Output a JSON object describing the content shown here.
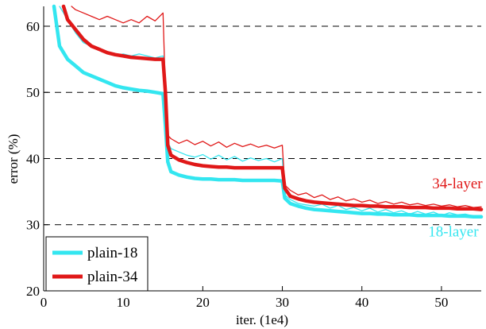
{
  "chart_data": {
    "type": "line",
    "xlabel": "iter. (1e4)",
    "ylabel": "error (%)",
    "xlim": [
      0,
      55
    ],
    "ylim": [
      20,
      63
    ],
    "xticks": [
      0,
      10,
      20,
      30,
      40,
      50
    ],
    "yticks": [
      20,
      30,
      40,
      50,
      60
    ],
    "grid": "horizontal-dashed",
    "legend": "bottom-left",
    "colors": {
      "plain18": "#33e6f0",
      "plain34": "#e01818"
    },
    "series": [
      {
        "name": "plain-18",
        "style": "thick",
        "x": [
          1.3,
          2,
          3,
          4,
          5,
          6,
          7,
          8,
          9,
          10,
          11,
          12,
          13,
          14,
          15,
          15.3,
          15.6,
          16,
          17,
          18,
          19,
          20,
          21,
          22,
          23,
          24,
          25,
          26,
          27,
          28,
          29,
          30,
          30.3,
          31,
          32,
          33,
          34,
          35,
          36,
          37,
          38,
          39,
          40,
          41,
          42,
          43,
          44,
          45,
          46,
          47,
          48,
          49,
          50,
          51,
          52,
          53,
          54,
          55
        ],
        "y": [
          63,
          57,
          55,
          54,
          53,
          52.5,
          52,
          51.5,
          51,
          50.7,
          50.5,
          50.3,
          50.2,
          50,
          49.8,
          45,
          39.5,
          38,
          37.5,
          37.2,
          37,
          36.9,
          36.9,
          36.8,
          36.8,
          36.8,
          36.7,
          36.7,
          36.7,
          36.7,
          36.7,
          36.6,
          34,
          33.2,
          32.8,
          32.5,
          32.3,
          32.2,
          32.1,
          32,
          31.9,
          31.8,
          31.7,
          31.7,
          31.6,
          31.6,
          31.5,
          31.5,
          31.5,
          31.4,
          31.4,
          31.4,
          31.4,
          31.3,
          31.3,
          31.3,
          31.2,
          31.2
        ]
      },
      {
        "name": "plain-34",
        "style": "thick",
        "x": [
          2.5,
          3,
          4,
          5,
          6,
          7,
          8,
          9,
          10,
          11,
          12,
          13,
          14,
          15,
          15.3,
          15.6,
          16,
          17,
          18,
          19,
          20,
          21,
          22,
          23,
          24,
          25,
          26,
          27,
          28,
          29,
          30,
          30.3,
          31,
          32,
          33,
          34,
          35,
          36,
          37,
          38,
          39,
          40,
          41,
          42,
          43,
          44,
          45,
          46,
          47,
          48,
          49,
          50,
          51,
          52,
          53,
          54,
          55
        ],
        "y": [
          63,
          61,
          59.5,
          58,
          57,
          56.5,
          56,
          55.7,
          55.5,
          55.3,
          55.2,
          55.1,
          55,
          55,
          50,
          42,
          40.5,
          39.8,
          39.4,
          39.1,
          38.9,
          38.8,
          38.7,
          38.7,
          38.6,
          38.6,
          38.6,
          38.6,
          38.6,
          38.6,
          38.6,
          35.5,
          34.3,
          33.9,
          33.6,
          33.4,
          33.3,
          33.2,
          33.1,
          33,
          32.9,
          32.9,
          32.8,
          32.8,
          32.7,
          32.7,
          32.7,
          32.6,
          32.6,
          32.6,
          32.5,
          32.5,
          32.5,
          32.4,
          32.4,
          32.4,
          32.3
        ]
      },
      {
        "name": "plain-18",
        "style": "thin",
        "x": [
          2,
          3,
          4,
          5,
          6,
          7,
          8,
          9,
          10,
          11,
          12,
          13,
          14,
          15,
          15.3,
          15.6,
          16,
          17,
          18,
          19,
          20,
          21,
          22,
          23,
          24,
          25,
          26,
          27,
          28,
          29,
          30,
          30.3,
          31,
          32,
          33,
          34,
          35,
          36,
          37,
          38,
          39,
          40,
          41,
          42,
          43,
          44,
          45,
          46,
          47,
          48,
          49,
          50,
          51,
          52,
          53,
          54,
          55
        ],
        "y": [
          63,
          61,
          59,
          57.5,
          57,
          56.5,
          56,
          55.5,
          55.8,
          55.5,
          55.8,
          55.5,
          55.2,
          55.5,
          52,
          42.5,
          41.5,
          41,
          40.5,
          40.2,
          40.6,
          39.9,
          40.5,
          39.8,
          40.3,
          39.6,
          40.1,
          39.7,
          40,
          39.5,
          40,
          34.5,
          33.8,
          33.2,
          33,
          32.8,
          33.1,
          32.5,
          32.9,
          32.3,
          32.6,
          32.1,
          32.5,
          31.9,
          32.3,
          31.8,
          32.1,
          31.6,
          32,
          31.6,
          31.9,
          31.4,
          31.8,
          31.5,
          31.6,
          31.3,
          31.4
        ]
      },
      {
        "name": "plain-34",
        "style": "thin",
        "x": [
          3.5,
          4,
          5,
          6,
          7,
          8,
          9,
          10,
          11,
          12,
          13,
          14,
          15,
          15.3,
          15.6,
          16,
          17,
          18,
          19,
          20,
          21,
          22,
          23,
          24,
          25,
          26,
          27,
          28,
          29,
          30,
          30.3,
          31,
          32,
          33,
          34,
          35,
          36,
          37,
          38,
          39,
          40,
          41,
          42,
          43,
          44,
          45,
          46,
          47,
          48,
          49,
          50,
          51,
          52,
          53,
          54,
          55
        ],
        "y": [
          63,
          62.5,
          62,
          61.5,
          61,
          61.5,
          61,
          60.5,
          61,
          60.5,
          61.5,
          60.8,
          62,
          50,
          43.5,
          43,
          42.3,
          42.8,
          42.1,
          42.6,
          41.9,
          42.5,
          41.7,
          42.3,
          41.8,
          42.2,
          41.7,
          42,
          41.6,
          42,
          36,
          35.2,
          34.5,
          34.8,
          34.1,
          34.5,
          33.8,
          34.2,
          33.6,
          33.9,
          33.4,
          33.7,
          33.2,
          33.5,
          33.1,
          33.4,
          33,
          33.2,
          32.9,
          33.1,
          32.8,
          33,
          32.7,
          32.9,
          32.6,
          32.7
        ]
      }
    ],
    "annotations": [
      {
        "text": "34-layer",
        "x": 52,
        "y": 35.5,
        "color": "#e01818"
      },
      {
        "text": "18-layer",
        "x": 51.5,
        "y": 28.2,
        "color": "#33e6f0"
      }
    ]
  }
}
